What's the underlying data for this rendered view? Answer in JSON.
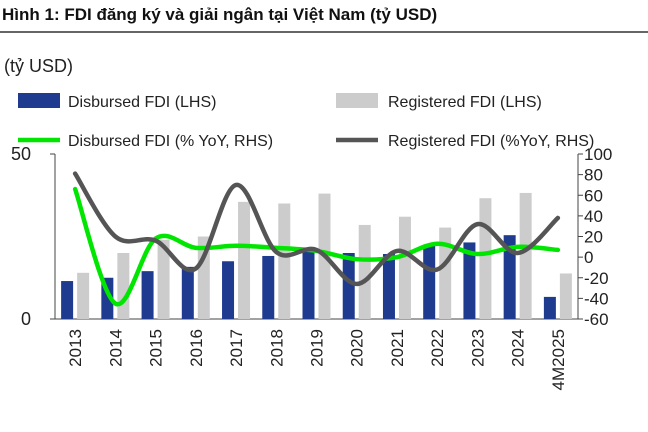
{
  "chart_data": {
    "type": "bar+line",
    "title": "Hình 1: FDI đăng ký và giải ngân tại Việt Nam (tỷ USD)",
    "unit_label": "(tỷ USD)",
    "categories": [
      "2013",
      "2014",
      "2015",
      "2016",
      "2017",
      "2018",
      "2019",
      "2020",
      "2021",
      "2022",
      "2023",
      "2024",
      "4M2025"
    ],
    "left_axis": {
      "min": 0,
      "max": 50,
      "ticks": [
        0,
        50
      ]
    },
    "right_axis": {
      "min": -60,
      "max": 100,
      "ticks": [
        100,
        80,
        60,
        40,
        20,
        0,
        -20,
        -40,
        -60
      ]
    },
    "series": [
      {
        "name": "Disbursed FDI (LHS)",
        "type": "bar",
        "axis": "left",
        "color": "#1f3b8f",
        "values": [
          11.5,
          12.5,
          14.5,
          15.8,
          17.5,
          19.1,
          20.4,
          20.0,
          19.7,
          22.4,
          23.2,
          25.4,
          6.7
        ]
      },
      {
        "name": "Registered FDI (LHS)",
        "type": "bar",
        "axis": "left",
        "color": "#cccccc",
        "values": [
          14,
          20,
          24,
          25,
          35.5,
          35,
          38,
          28.5,
          31,
          27.7,
          36.6,
          38.2,
          13.8
        ]
      },
      {
        "name": "Disbursed FDI (% YoY, RHS)",
        "type": "line",
        "axis": "right",
        "color": "#00e600",
        "values": [
          66,
          -45,
          18,
          9,
          11,
          9,
          6,
          -2,
          0,
          13,
          3,
          10,
          7
        ]
      },
      {
        "name": "Registered FDI (%YoY, RHS)",
        "type": "line",
        "axis": "right",
        "color": "#555555",
        "values": [
          81,
          20,
          16,
          -11,
          70,
          5,
          7,
          -26,
          6,
          -12,
          32,
          4,
          38
        ]
      }
    ],
    "legend_position": "top"
  }
}
